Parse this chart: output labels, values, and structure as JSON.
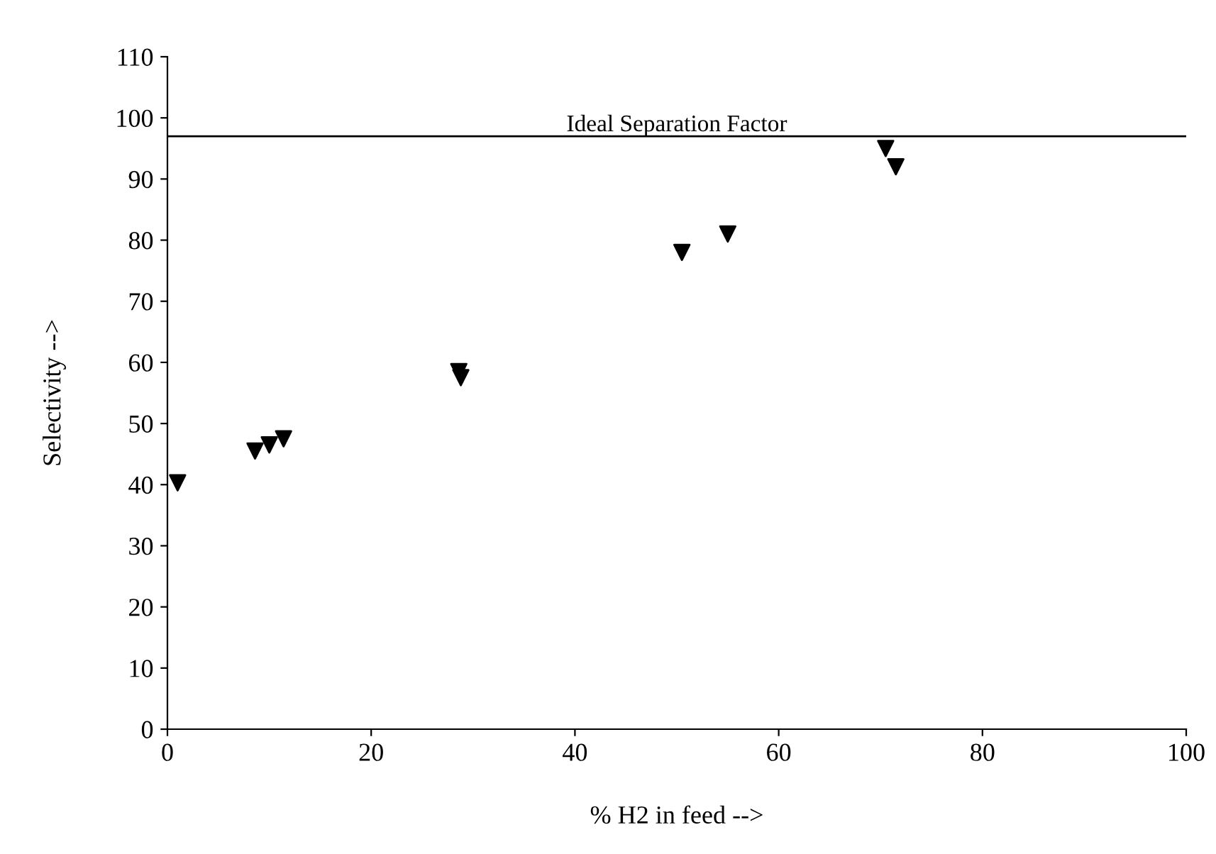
{
  "chart_data": {
    "type": "scatter",
    "xlabel": "% H2 in feed -->",
    "ylabel": "Selectivity -->",
    "x": [
      1,
      8.6,
      10,
      11.4,
      28.6,
      28.8,
      50.5,
      55,
      70.5,
      71.5
    ],
    "values": [
      40.3,
      45.5,
      46.5,
      47.5,
      58.5,
      57.5,
      78,
      81,
      95,
      92
    ],
    "color": "#000000",
    "marker": "triangle",
    "grid": false,
    "xlim": [
      0,
      100
    ],
    "xticks": [
      0,
      20,
      40,
      60,
      80,
      100
    ],
    "ylim": [
      0,
      110
    ],
    "yticks": [
      0,
      10,
      20,
      30,
      40,
      50,
      60,
      70,
      80,
      90,
      100,
      110
    ],
    "ref_lines": [
      {
        "axis": "y",
        "value": 97,
        "label": "Ideal Separation Factor",
        "color": "#000000"
      }
    ]
  }
}
